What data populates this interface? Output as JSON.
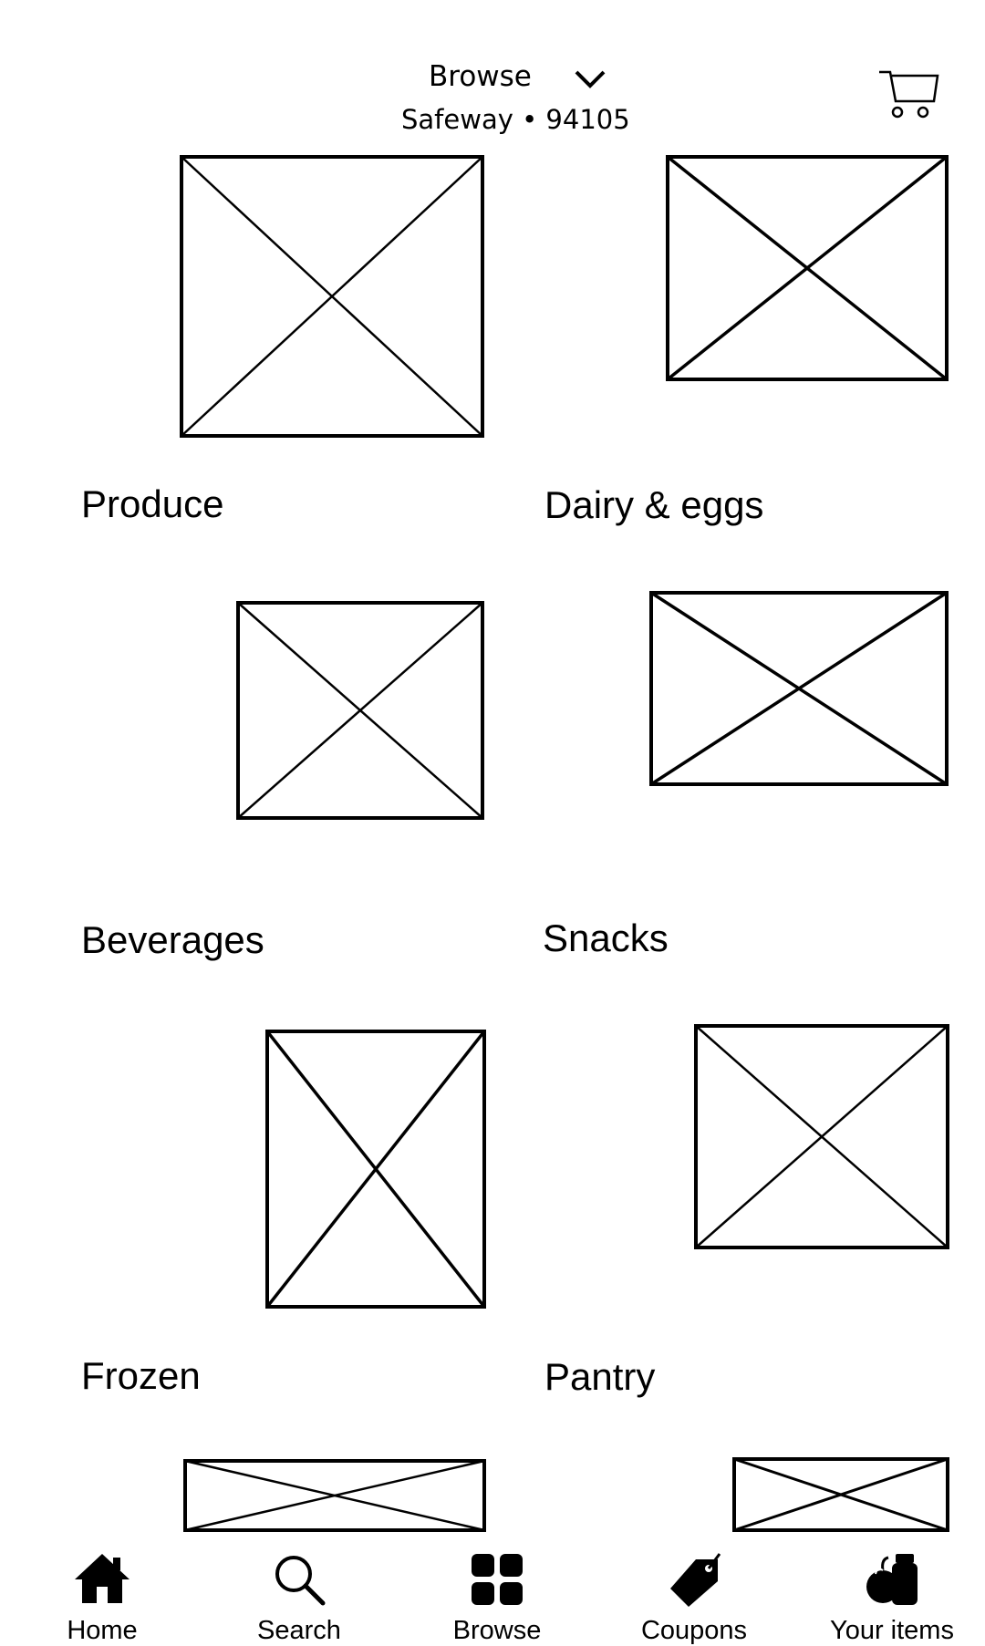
{
  "header": {
    "title": "Browse",
    "store": "Safeway • 94105",
    "dropdown_icon": "chevron-down-icon",
    "cart_icon": "cart-icon"
  },
  "categories": [
    {
      "label": "Produce"
    },
    {
      "label": "Dairy & eggs"
    },
    {
      "label": "Beverages"
    },
    {
      "label": "Snacks"
    },
    {
      "label": "Frozen"
    },
    {
      "label": "Pantry"
    },
    {
      "label": ""
    },
    {
      "label": ""
    }
  ],
  "bottom_nav": {
    "items": [
      {
        "label": "Home",
        "icon": "home-icon"
      },
      {
        "label": "Search",
        "icon": "search-icon"
      },
      {
        "label": "Browse",
        "icon": "grid-icon"
      },
      {
        "label": "Coupons",
        "icon": "tag-icon"
      },
      {
        "label": "Your items",
        "icon": "apple-jar-icon"
      }
    ]
  }
}
